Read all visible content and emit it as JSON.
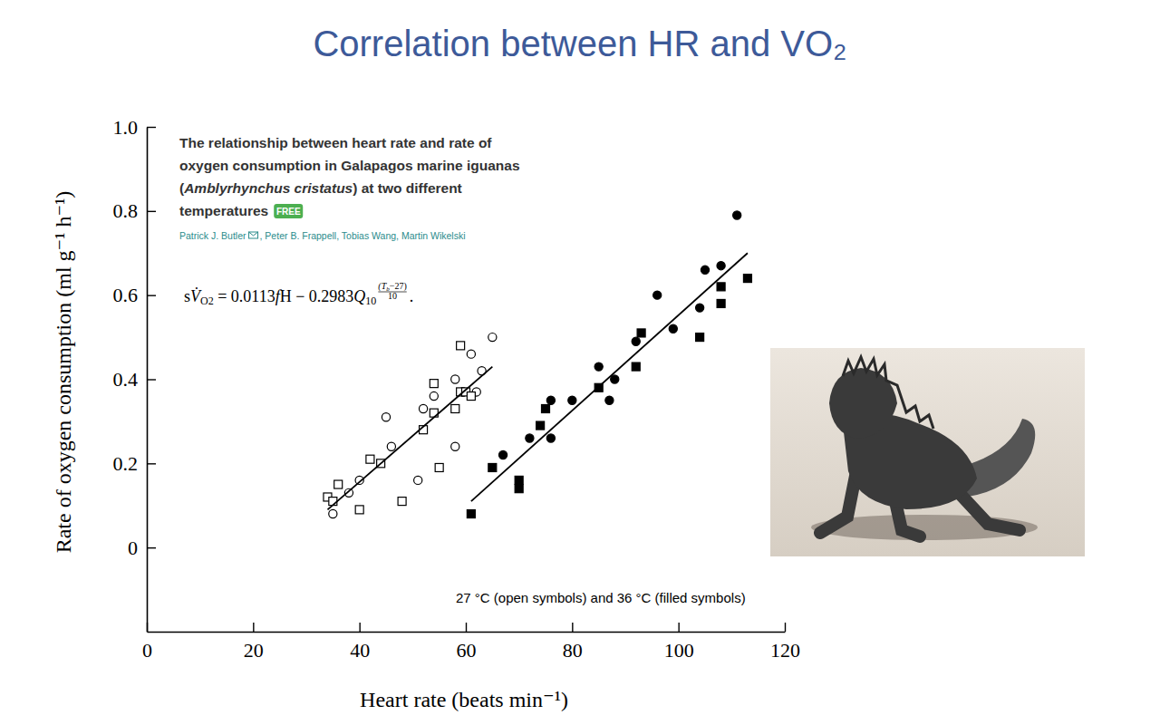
{
  "slide_title": "Correlation between HR and VO₂",
  "paper": {
    "title_lines": [
      [
        "The relationship between heart rate and rate of"
      ],
      [
        "oxygen consumption in Galapagos marine iguanas"
      ],
      [
        "(",
        "Amblyrhynchus cristatus",
        ") at two different"
      ],
      [
        "temperatures"
      ]
    ],
    "badge": "FREE",
    "authors": [
      "Patrick J. Butler",
      ", Peter B. Frappell, Tobias Wang, Martin Wikelski"
    ]
  },
  "equation": {
    "main": [
      "s",
      "V̇",
      "O2",
      " = 0.0113",
      "f",
      "H − 0.2983",
      "Q",
      "10"
    ],
    "exponent_numerator": [
      "(T",
      "b",
      "−27)"
    ],
    "exponent_denominator": "10",
    "end": "."
  },
  "chart_data": {
    "type": "scatter",
    "xlabel": "Heart rate (beats min⁻¹)",
    "ylabel": "Rate of oxygen consumption (ml g⁻¹ h⁻¹)",
    "xlim": [
      0,
      120
    ],
    "ylim": [
      -0.2,
      1.0
    ],
    "xticks": [
      0,
      20,
      40,
      60,
      80,
      100,
      120
    ],
    "yticks": [
      0,
      0.2,
      0.4,
      0.6,
      0.8,
      {
        "value": 1.0,
        "label": "1.0"
      }
    ],
    "grid": false,
    "annotations": [
      {
        "text": "27 °C (open symbols) and 36 °C (filled symbols)"
      }
    ],
    "series": [
      {
        "type": "scatter",
        "marker": "circle-open",
        "color": "#000000",
        "x": [
          35,
          38,
          40,
          45,
          46,
          51,
          52,
          54,
          58,
          58,
          59.5,
          61,
          62,
          63,
          65
        ],
        "values": [
          0.08,
          0.13,
          0.16,
          0.31,
          0.24,
          0.16,
          0.33,
          0.36,
          0.4,
          0.24,
          0.37,
          0.46,
          0.37,
          0.42,
          0.5
        ]
      },
      {
        "type": "scatter",
        "marker": "square-open",
        "color": "#000000",
        "x": [
          34,
          35,
          36,
          40,
          42,
          44,
          48,
          52,
          54,
          54,
          55,
          58,
          59,
          59,
          60,
          61
        ],
        "values": [
          0.12,
          0.11,
          0.15,
          0.09,
          0.21,
          0.2,
          0.11,
          0.28,
          0.39,
          0.32,
          0.19,
          0.33,
          0.48,
          0.37,
          0.37,
          0.36
        ]
      },
      {
        "type": "scatter",
        "marker": "circle",
        "color": "#000000",
        "x": [
          67,
          72,
          76,
          76,
          80,
          85,
          87,
          88,
          92,
          96,
          99,
          104,
          105,
          108,
          111
        ],
        "values": [
          0.22,
          0.26,
          0.35,
          0.26,
          0.35,
          0.43,
          0.35,
          0.4,
          0.49,
          0.6,
          0.52,
          0.57,
          0.66,
          0.67,
          0.79
        ]
      },
      {
        "type": "scatter",
        "marker": "square",
        "color": "#000000",
        "x": [
          61,
          65,
          70,
          70,
          74,
          75,
          85,
          92,
          93,
          104,
          108,
          108,
          113
        ],
        "values": [
          0.08,
          0.19,
          0.16,
          0.14,
          0.29,
          0.33,
          0.38,
          0.43,
          0.51,
          0.5,
          0.62,
          0.58,
          0.64
        ]
      },
      {
        "type": "line",
        "line_style": "solid",
        "color": "#000000",
        "x": [
          34,
          65
        ],
        "values": [
          0.09,
          0.43
        ]
      },
      {
        "type": "line",
        "line_style": "solid",
        "color": "#000000",
        "x": [
          61,
          113
        ],
        "values": [
          0.11,
          0.7
        ]
      }
    ]
  }
}
